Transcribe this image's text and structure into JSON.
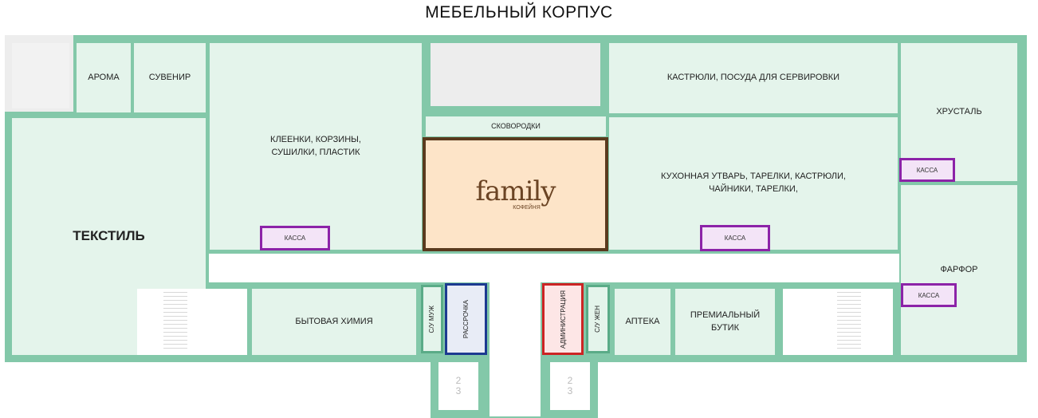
{
  "title": "МЕБЕЛЬНЫЙ КОРПУС",
  "rooms": {
    "aroma": "АРОМА",
    "souvenir": "СУВЕНИР",
    "textile": "ТЕКСТИЛЬ",
    "oilcloth": "КЛЕЕНКИ, КОРЗИНЫ,\nСУШИЛКИ, ПЛАСТИК",
    "pans_top": "КАСТРЮЛИ, ПОСУДА ДЛЯ СЕРВИРОВКИ",
    "skillets": "СКОВОРОДКИ",
    "kitchenware": "КУХОННАЯ УТВАРЬ, ТАРЕЛКИ, КАСТРЮЛИ,\nЧАЙНИКИ, ТАРЕЛКИ,",
    "crystal": "ХРУСТАЛЬ",
    "porcelain": "ФАРФОР",
    "household_chem": "БЫТОВАЯ ХИМИЯ",
    "wc_men": "С/У МУЖ",
    "installment": "РАССРОЧКА",
    "administration": "АДМИНИСТРАЦИЯ",
    "wc_women": "С/У ЖЕН",
    "pharmacy": "АПТЕКА",
    "premium": "ПРЕМИАЛЬНЫЙ\nБУТИК"
  },
  "cafe": {
    "brand": "family",
    "sub": "КОФЕЙНЯ"
  },
  "kassa": "КАССА",
  "stairs": {
    "a": "2",
    "b": "3"
  },
  "colors": {
    "wall": "#83c8a9",
    "room": "#e4f4eb",
    "kassa_border": "#8c23a8",
    "installment_border": "#1c3a91",
    "admin_border": "#cc2424",
    "cafe_border": "#5a3a1e",
    "cafe_fill": "#fde4c8"
  }
}
